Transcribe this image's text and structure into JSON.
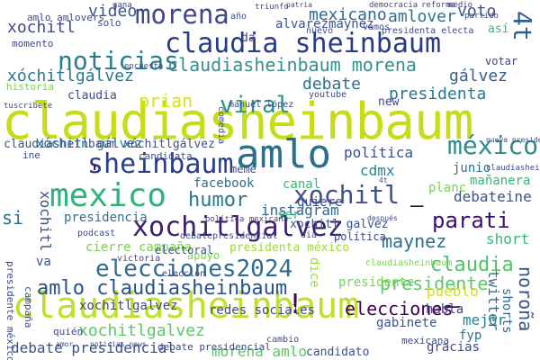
{
  "words": [
    {
      "text": "claudiasheinbaum",
      "color": "#c5dc17"
    },
    {
      "text": "claudiasheinbaum",
      "color": "#bfe02a"
    },
    {
      "text": "claudia sheinbaum",
      "color": "#2a3b86"
    },
    {
      "text": "amlo",
      "color": "#2a6f8e"
    },
    {
      "text": "sheinbaum",
      "color": "#2b3d88"
    },
    {
      "text": "mexico",
      "color": "#2eb37c"
    },
    {
      "text": "xochitlgalvez",
      "color": "#3b1e6d"
    },
    {
      "text": "elecciones2024",
      "color": "#2f6b8e"
    },
    {
      "text": "amlo claudiasheinbaum",
      "color": "#29518b"
    },
    {
      "text": "morena",
      "color": "#404688"
    },
    {
      "text": "noticias",
      "color": "#2c7c8e"
    },
    {
      "text": "4t",
      "color": "#2e5f8d"
    },
    {
      "text": "claudiasheinbaum morena",
      "color": "#3a8e8c"
    },
    {
      "text": "xochitl",
      "color": "#3c5189"
    },
    {
      "text": "parati",
      "color": "#3b0f70"
    },
    {
      "text": "méxico",
      "color": "#2e8b8c"
    },
    {
      "text": "viral",
      "color": "#2e8f8b"
    },
    {
      "text": "prian",
      "color": "#d8e219"
    },
    {
      "text": "maynez",
      "color": "#2d6d8e"
    },
    {
      "text": "claudia",
      "color": "#4ec36b"
    },
    {
      "text": "presidente",
      "color": "#5ac864"
    },
    {
      "text": "humor",
      "color": "#2a788e"
    },
    {
      "text": "elecciones",
      "color": "#440154"
    },
    {
      "text": "debate presidencial",
      "color": "#3d4c8a"
    },
    {
      "text": "xóchitl gálvez",
      "color": "#2b748e"
    },
    {
      "text": "morena amlo",
      "color": "#5ac864"
    },
    {
      "text": "xochitlgalvez",
      "color": "#5ac864"
    },
    {
      "text": "debate",
      "color": "#2e6f8e"
    },
    {
      "text": "presidenta",
      "color": "#2a768e"
    },
    {
      "text": "amlover",
      "color": "#2c728e"
    },
    {
      "text": "mexicano",
      "color": "#31688e"
    },
    {
      "text": "video",
      "color": "#3a548c"
    },
    {
      "text": "voto",
      "color": "#3b528b"
    },
    {
      "text": "xochitl",
      "color": "#3e4a89"
    },
    {
      "text": "xóchitlgálvez",
      "color": "#2a768e"
    },
    {
      "text": "gálvez",
      "color": "#34608d"
    },
    {
      "text": "cdmx",
      "color": "#25858e"
    },
    {
      "text": "política",
      "color": "#3c508b"
    },
    {
      "text": "facebook",
      "color": "#2e6d8e"
    },
    {
      "text": "instagram",
      "color": "#31688e"
    },
    {
      "text": "short",
      "color": "#35b779"
    },
    {
      "text": "debateine",
      "color": "#3b528b"
    },
    {
      "text": "mañanera",
      "color": "#35b779"
    },
    {
      "text": "pueblo",
      "color": "#d0e11c"
    },
    {
      "text": "twitter",
      "color": "#2e6e8e"
    },
    {
      "text": "mejor",
      "color": "#25848e"
    },
    {
      "text": "noroña",
      "color": "#3a548c"
    },
    {
      "text": "shorts",
      "color": "#31688e"
    },
    {
      "text": "gabinete",
      "color": "#3b528b"
    },
    {
      "text": "habla",
      "color": "#414487"
    },
    {
      "text": "fyp",
      "color": "#2c728e"
    },
    {
      "text": "gracias",
      "color": "#3e4989"
    },
    {
      "text": "candidato",
      "color": "#3b528b"
    },
    {
      "text": "redes sociales",
      "color": "#3e4a89"
    },
    {
      "text": "xochitlgalvez",
      "color": "#404688"
    },
    {
      "text": "cierre campaña",
      "color": "#7ad151"
    },
    {
      "text": "apoyo",
      "color": "#7ad151"
    },
    {
      "text": "presidencia",
      "color": "#2d708e"
    },
    {
      "text": "si",
      "color": "#2f6c8e"
    },
    {
      "text": "va",
      "color": "#3b528b"
    },
    {
      "text": "xochitl galvez",
      "color": "#3b528b"
    },
    {
      "text": "política",
      "color": "#3e4a89"
    },
    {
      "text": "presidenta méxico",
      "color": "#a0da39"
    },
    {
      "text": "electoral",
      "color": "#3e4a89"
    },
    {
      "text": "planc",
      "color": "#7ad151"
    },
    {
      "text": "junio",
      "color": "#2c728e"
    },
    {
      "text": "candidata",
      "color": "#3b528b"
    },
    {
      "text": "canal",
      "color": "#35b779"
    },
    {
      "text": "quiere",
      "color": "#3e4a89"
    },
    {
      "text": "ser",
      "color": "#35b779"
    },
    {
      "text": "xochitl",
      "color": "#3b528b"
    },
    {
      "text": "meme",
      "color": "#3e4a89"
    },
    {
      "text": "claudiasheinbaum xóchitlgálvez",
      "color": "#3b528b"
    },
    {
      "text": "historia",
      "color": "#7ad151"
    },
    {
      "text": "alvarezmaynez",
      "color": "#3b528b"
    },
    {
      "text": "así",
      "color": "#35b779"
    },
    {
      "text": "votar",
      "color": "#3e4a89"
    },
    {
      "text": "claudia",
      "color": "#3e4a89"
    },
    {
      "text": "amlo amlovers",
      "color": "#3e4a89"
    },
    {
      "text": "momento",
      "color": "#3e4a89"
    },
    {
      "text": "solo",
      "color": "#3e4a89"
    },
    {
      "text": "nuevo",
      "color": "#3e4a89"
    },
    {
      "text": "vamos",
      "color": "#3e4a89"
    },
    {
      "text": "da",
      "color": "#3e4a89"
    },
    {
      "text": "año",
      "color": "#3e4a89"
    },
    {
      "text": "presidente",
      "color": "#7ad151"
    },
    {
      "text": "presidente méxico",
      "color": "#3e4a89"
    },
    {
      "text": "elección",
      "color": "#3e4a89"
    },
    {
      "text": "campaña",
      "color": "#3e4a89"
    },
    {
      "text": "quién",
      "color": "#3e4a89"
    },
    {
      "text": "debate presidencial",
      "color": "#3e4a89"
    },
    {
      "text": "mexicana",
      "color": "#3e4a89"
    },
    {
      "text": "cambio",
      "color": "#3e4a89"
    },
    {
      "text": "dice",
      "color": "#a0da39"
    },
    {
      "text": "presidenta electa",
      "color": "#3e4a89"
    },
    {
      "text": "youtube",
      "color": "#3e4a89"
    },
    {
      "text": "new",
      "color": "#3e4a89"
    },
    {
      "text": "claudiasheinbaum",
      "color": "#7ad151"
    },
    {
      "text": "debatepresidencial",
      "color": "#3e4a89"
    },
    {
      "text": "podcast",
      "color": "#3e4a89"
    },
    {
      "text": "victoria",
      "color": "#3e4a89"
    },
    {
      "text": "manuel lópez",
      "color": "#3e4a89"
    },
    {
      "text": "comedia",
      "color": "#3e4a89"
    },
    {
      "text": "democracia",
      "color": "#3e4a89"
    },
    {
      "text": "triunfo",
      "color": "#3e4a89"
    },
    {
      "text": "reforma",
      "color": "#3e4a89"
    },
    {
      "text": "partido",
      "color": "#3e4a89"
    },
    {
      "text": "medio",
      "color": "#3e4a89"
    },
    {
      "text": "encuesta",
      "color": "#3e4a89"
    },
    {
      "text": "claudiasheinbaum'",
      "color": "#3e4a89"
    },
    {
      "text": "nueva presidenta",
      "color": "#3e4a89"
    },
    {
      "text": "tuscribete",
      "color": "#3e4a89"
    },
    {
      "text": "gana",
      "color": "#3e4a89"
    },
    {
      "text": "patria",
      "color": "#3e4a89"
    },
    {
      "text": "ine",
      "color": "#3e4a89"
    },
    {
      "text": "dia",
      "color": "#3e4a89"
    },
    {
      "text": "después",
      "color": "#3e4a89"
    },
    {
      "text": "noticias news",
      "color": "#3e4a89"
    },
    {
      "text": "amor",
      "color": "#3e4a89"
    },
    {
      "text": "política mexicana",
      "color": "#3e4a89"
    },
    {
      "text": "4t",
      "color": "#3e4a89"
    },
    {
      "text": "'",
      "color": "#440154"
    },
    {
      "text": "!",
      "color": "#440154"
    },
    {
      "text": "–",
      "color": "#440154"
    },
    {
      "text": "–",
      "color": "#440154"
    }
  ]
}
